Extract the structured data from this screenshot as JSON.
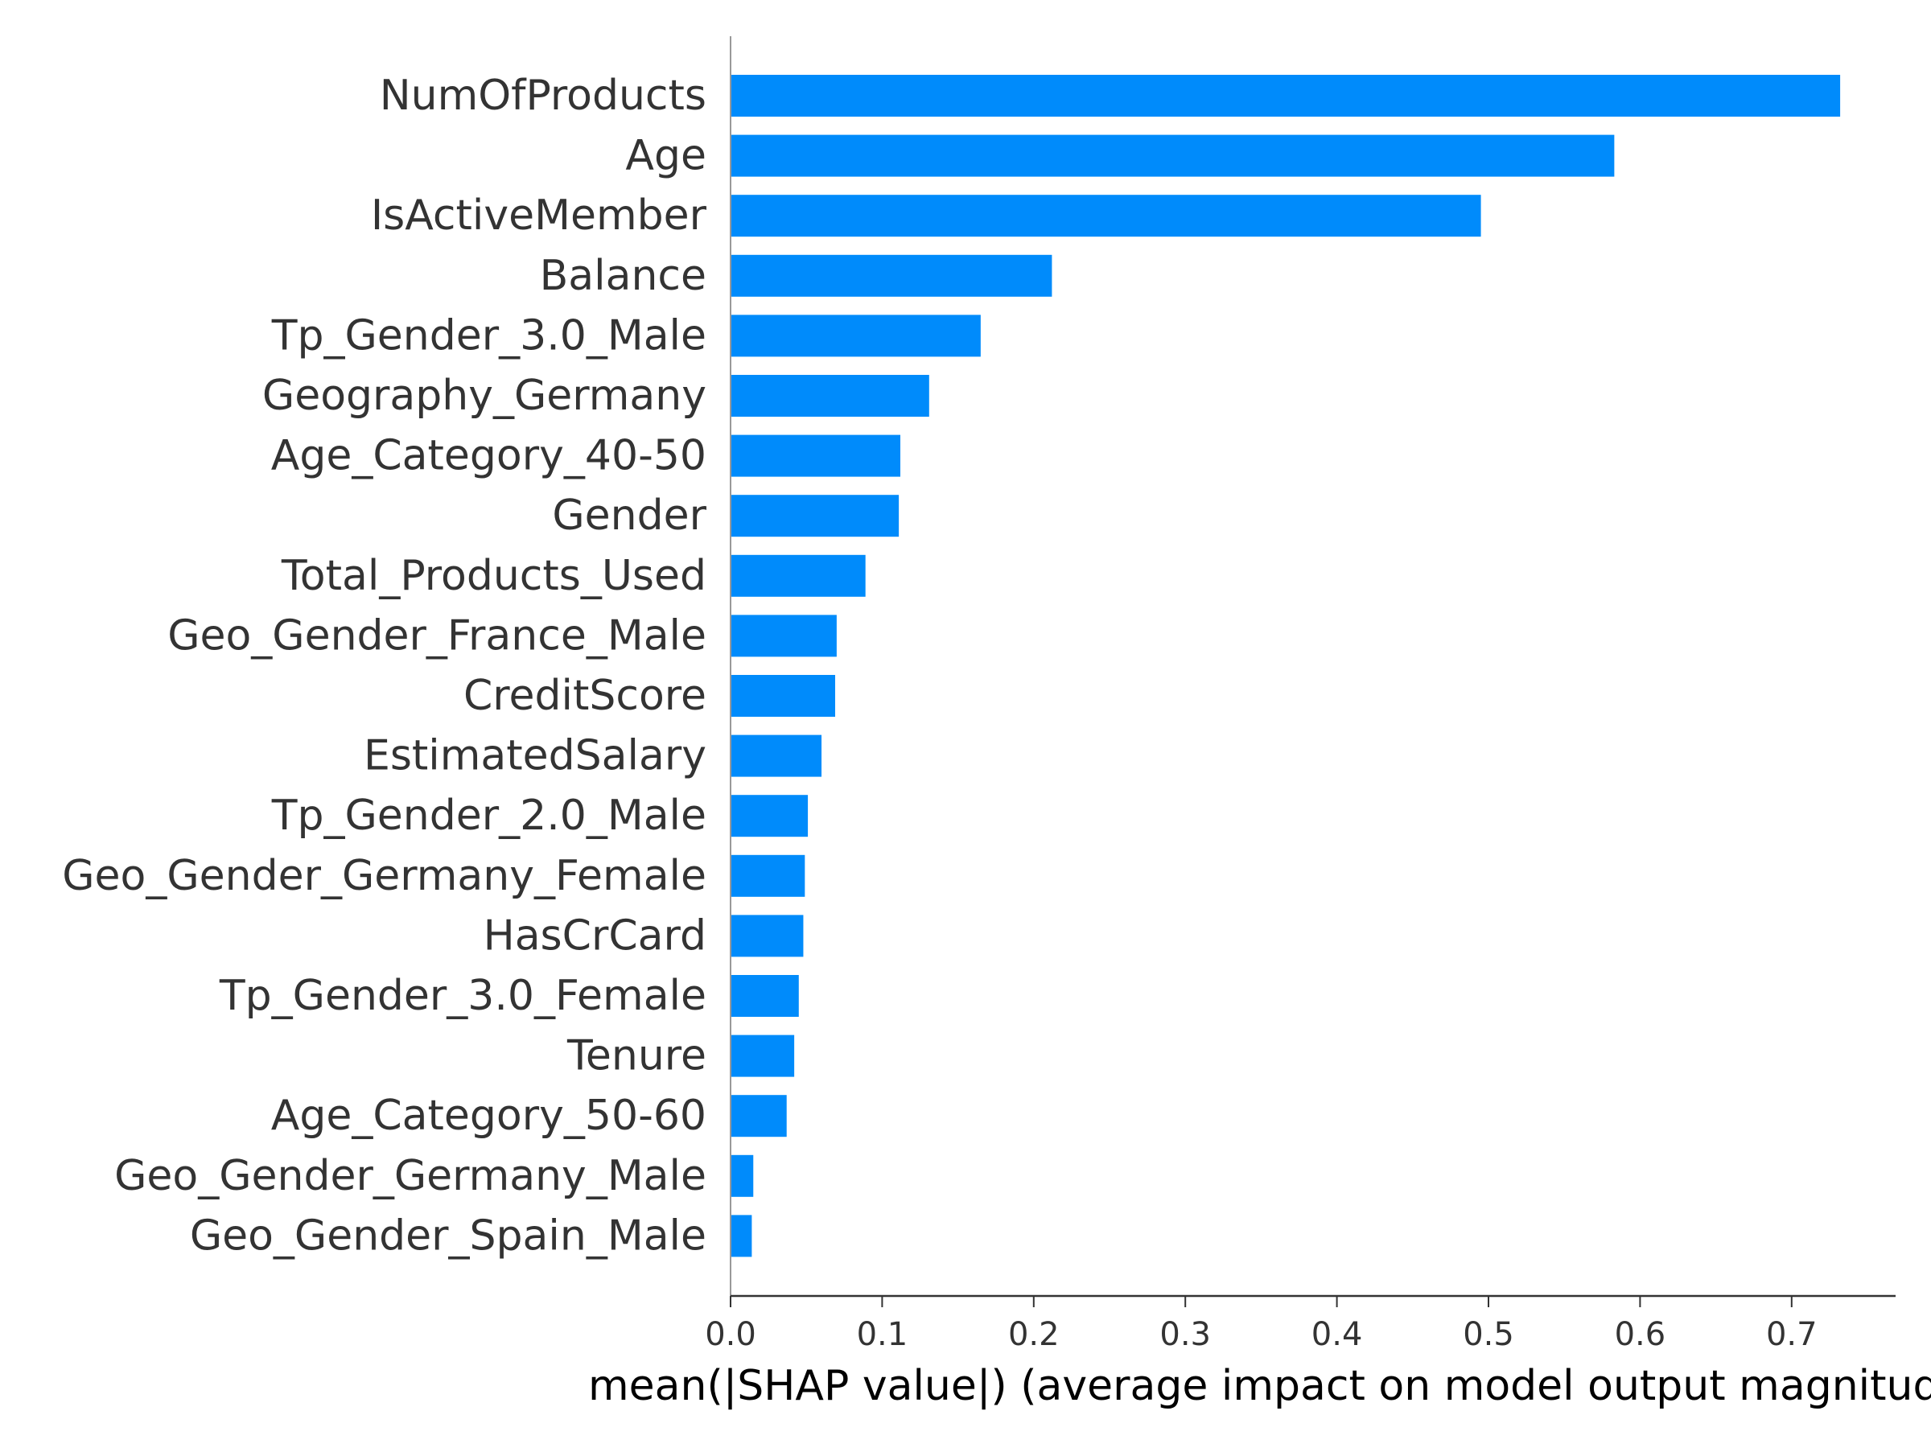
{
  "chart_data": {
    "type": "bar",
    "orientation": "horizontal",
    "categories": [
      "NumOfProducts",
      "Age",
      "IsActiveMember",
      "Balance",
      "Tp_Gender_3.0_Male",
      "Geography_Germany",
      "Age_Category_40-50",
      "Gender",
      "Total_Products_Used",
      "Geo_Gender_France_Male",
      "CreditScore",
      "EstimatedSalary",
      "Tp_Gender_2.0_Male",
      "Geo_Gender_Germany_Female",
      "HasCrCard",
      "Tp_Gender_3.0_Female",
      "Tenure",
      "Age_Category_50-60",
      "Geo_Gender_Germany_Male",
      "Geo_Gender_Spain_Male"
    ],
    "values": [
      0.732,
      0.583,
      0.495,
      0.212,
      0.165,
      0.131,
      0.112,
      0.111,
      0.089,
      0.07,
      0.069,
      0.06,
      0.051,
      0.049,
      0.048,
      0.045,
      0.042,
      0.037,
      0.015,
      0.014
    ],
    "xlabel": "mean(|SHAP value|) (average impact on model output magnitude)",
    "ylabel": "",
    "title": "",
    "xlim": [
      0,
      0.77
    ],
    "xticks": [
      0.0,
      0.1,
      0.2,
      0.3,
      0.4,
      0.5,
      0.6,
      0.7
    ],
    "xtick_labels": [
      "0.0",
      "0.1",
      "0.2",
      "0.3",
      "0.4",
      "0.5",
      "0.6",
      "0.7"
    ],
    "grid": false,
    "legend": "none",
    "bar_color": "#008bfb",
    "axis_color": "#333333",
    "left_spine_color": "#999999"
  }
}
